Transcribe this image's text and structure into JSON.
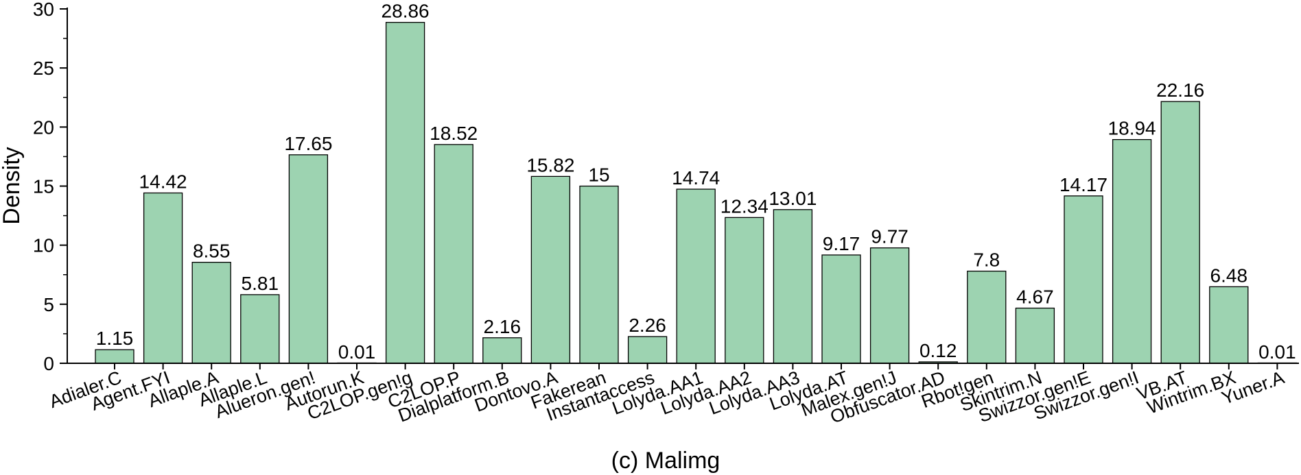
{
  "chart_data": {
    "type": "bar",
    "title": "",
    "xlabel": "(c) Malimg",
    "ylabel": "Density",
    "ylim": [
      0,
      30
    ],
    "yticks": [
      0,
      5,
      10,
      15,
      20,
      25,
      30
    ],
    "grid": false,
    "bar_color": "#9dd3b1",
    "categories": [
      "Adialer.C",
      "Agent.FYI",
      "Allaple.A",
      "Allaple.L",
      "Alueron.gen!",
      "Autorun.K",
      "C2LOP.gen!g",
      "C2LOP.P",
      "Dialplatform.B",
      "Dontovo.A",
      "Fakerean",
      "Instantaccess",
      "Lolyda.AA1",
      "Lolyda.AA2",
      "Lolyda.AA3",
      "Lolyda.AT",
      "Malex.gen!J",
      "Obfuscator.AD",
      "Rbot!gen",
      "Skintrim.N",
      "Swizzor.gen!E",
      "Swizzor.gen!I",
      "VB.AT",
      "Wintrim.BX",
      "Yuner.A"
    ],
    "values": [
      1.15,
      14.42,
      8.55,
      5.81,
      17.65,
      0.01,
      28.86,
      18.52,
      2.16,
      15.82,
      15,
      2.26,
      14.74,
      12.34,
      13.01,
      9.17,
      9.77,
      0.12,
      7.8,
      4.67,
      14.17,
      18.94,
      22.16,
      6.48,
      0.01
    ],
    "labels": [
      "1.15",
      "14.42",
      "8.55",
      "5.81",
      "17.65",
      "0.01",
      "28.86",
      "18.52",
      "2.16",
      "15.82",
      "15",
      "2.26",
      "14.74",
      "12.34",
      "13.01",
      "9.17",
      "9.77",
      "0.12",
      "7.8",
      "4.67",
      "14.17",
      "18.94",
      "22.16",
      "6.48",
      "0.01"
    ]
  }
}
